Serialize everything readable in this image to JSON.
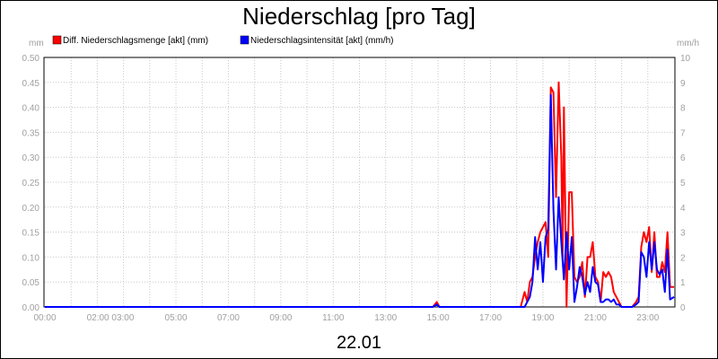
{
  "chart_data": {
    "type": "line",
    "title": "Niederschlag [pro Tag]",
    "date_label": "22.01",
    "y_left_unit": "mm",
    "y_right_unit": "mm/h",
    "ylim_left": [
      0,
      0.5
    ],
    "ylim_right": [
      0,
      10
    ],
    "y_left_ticks": [
      "0.00",
      "0.05",
      "0.10",
      "0.15",
      "0.20",
      "0.25",
      "0.30",
      "0.35",
      "0.40",
      "0.45",
      "0.50"
    ],
    "y_right_ticks": [
      "0",
      "1",
      "2",
      "3",
      "4",
      "5",
      "6",
      "7",
      "8",
      "9",
      "10"
    ],
    "x_range_hours": [
      0,
      24
    ],
    "x_ticks": [
      {
        "hour": 0,
        "label": "00:00"
      },
      {
        "hour": 2.5,
        "label": "02:00 03:00"
      },
      {
        "hour": 5,
        "label": "05:00"
      },
      {
        "hour": 7,
        "label": "07:00"
      },
      {
        "hour": 9,
        "label": "09:00"
      },
      {
        "hour": 11,
        "label": "11:00"
      },
      {
        "hour": 13,
        "label": "13:00"
      },
      {
        "hour": 15,
        "label": "15:00"
      },
      {
        "hour": 17,
        "label": "17:00"
      },
      {
        "hour": 19,
        "label": "19:00"
      },
      {
        "hour": 21,
        "label": "21:00"
      },
      {
        "hour": 23,
        "label": "23:00"
      }
    ],
    "grid": true,
    "legend_position": "top-left",
    "series": [
      {
        "name": "Diff. Niederschlagsmenge [akt] (mm)",
        "axis": "left",
        "color": "#ff0000",
        "x": [
          0,
          14.8,
          14.95,
          15.05,
          15.15,
          18.15,
          18.3,
          18.4,
          18.5,
          18.6,
          18.7,
          18.8,
          18.9,
          19.0,
          19.1,
          19.2,
          19.3,
          19.4,
          19.5,
          19.6,
          19.7,
          19.75,
          19.8,
          19.9,
          20.0,
          20.1,
          20.2,
          20.3,
          20.4,
          20.5,
          20.6,
          20.7,
          20.8,
          20.9,
          21.0,
          21.1,
          21.2,
          21.3,
          21.4,
          21.5,
          21.6,
          21.7,
          21.8,
          21.9,
          22.0,
          22.2,
          22.4,
          22.55,
          22.65,
          22.75,
          22.85,
          22.95,
          23.05,
          23.15,
          23.25,
          23.35,
          23.45,
          23.55,
          23.65,
          23.75,
          23.85,
          24.0
        ],
        "y": [
          0,
          0,
          0.01,
          0,
          0,
          0,
          0.03,
          0.01,
          0.05,
          0.06,
          0.1,
          0.13,
          0.15,
          0.16,
          0.17,
          0.1,
          0.44,
          0.43,
          0.22,
          0.45,
          0.3,
          0.1,
          0.4,
          0,
          0.23,
          0.23,
          0.06,
          0.05,
          0.06,
          0.09,
          0.02,
          0.1,
          0.1,
          0.13,
          0.06,
          0.05,
          0.01,
          0.07,
          0.06,
          0.07,
          0.06,
          0.03,
          0.02,
          0.01,
          0,
          0,
          0,
          0.01,
          0.02,
          0.12,
          0.15,
          0.13,
          0.16,
          0.07,
          0.15,
          0.06,
          0.06,
          0.09,
          0.07,
          0.15,
          0.04,
          0.04
        ]
      },
      {
        "name": "Niederschlagsintensität [akt] (mm/h)",
        "axis": "right",
        "color": "#0000ff",
        "x": [
          0,
          14.8,
          14.95,
          15.05,
          15.15,
          18.3,
          18.4,
          18.5,
          18.6,
          18.7,
          18.8,
          18.9,
          19.0,
          19.1,
          19.2,
          19.3,
          19.4,
          19.5,
          19.6,
          19.7,
          19.8,
          19.9,
          20.0,
          20.1,
          20.2,
          20.3,
          20.4,
          20.5,
          20.6,
          20.7,
          20.8,
          20.9,
          21.0,
          21.1,
          21.2,
          21.3,
          21.4,
          21.5,
          21.6,
          21.7,
          21.8,
          21.9,
          22.0,
          22.2,
          22.4,
          22.55,
          22.65,
          22.75,
          22.85,
          22.95,
          23.05,
          23.15,
          23.25,
          23.35,
          23.45,
          23.55,
          23.65,
          23.75,
          23.85,
          24.0
        ],
        "y": [
          0,
          0,
          0.1,
          0,
          0,
          0,
          0.2,
          0.4,
          1.0,
          2.8,
          1.5,
          2.6,
          1.0,
          2.8,
          3.1,
          8.5,
          3.9,
          1.5,
          4.4,
          2.6,
          1.1,
          3.0,
          1.5,
          2.8,
          0.2,
          0.8,
          1.6,
          1.2,
          0.5,
          1.0,
          0.6,
          1.6,
          1.0,
          0.9,
          0.2,
          0.2,
          0.3,
          0.3,
          0.2,
          0.3,
          0.1,
          0.1,
          0,
          0,
          0,
          0.1,
          0.2,
          2.2,
          2.0,
          1.2,
          2.6,
          1.5,
          2.6,
          1.5,
          1.3,
          1.5,
          0.6,
          2.3,
          0.3,
          0.4
        ]
      }
    ]
  }
}
